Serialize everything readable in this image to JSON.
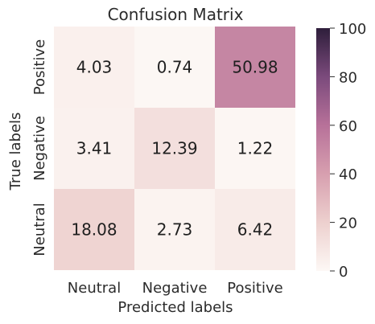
{
  "chart_data": {
    "type": "heatmap",
    "title": "Confusion Matrix",
    "xlabel": "Predicted labels",
    "ylabel": "True labels",
    "x_categories": [
      "Neutral",
      "Negative",
      "Positive"
    ],
    "y_categories": [
      "Positive",
      "Negative",
      "Neutral"
    ],
    "values": [
      [
        4.03,
        0.74,
        50.98
      ],
      [
        3.41,
        12.39,
        1.22
      ],
      [
        18.08,
        2.73,
        6.42
      ]
    ],
    "value_labels": [
      [
        "4.03",
        "0.74",
        "50.98"
      ],
      [
        "3.41",
        "12.39",
        "1.22"
      ],
      [
        "18.08",
        "2.73",
        "6.42"
      ]
    ],
    "colorbar": {
      "min": 0,
      "max": 100,
      "ticks": [
        0,
        20,
        40,
        60,
        80,
        100
      ],
      "tick_labels": [
        "0",
        "20",
        "40",
        "60",
        "80",
        "100"
      ],
      "colors": [
        "#fdf8f5",
        "#edd0ce",
        "#d79faf",
        "#b77199",
        "#7b4a7c",
        "#2e1e3b"
      ]
    }
  }
}
